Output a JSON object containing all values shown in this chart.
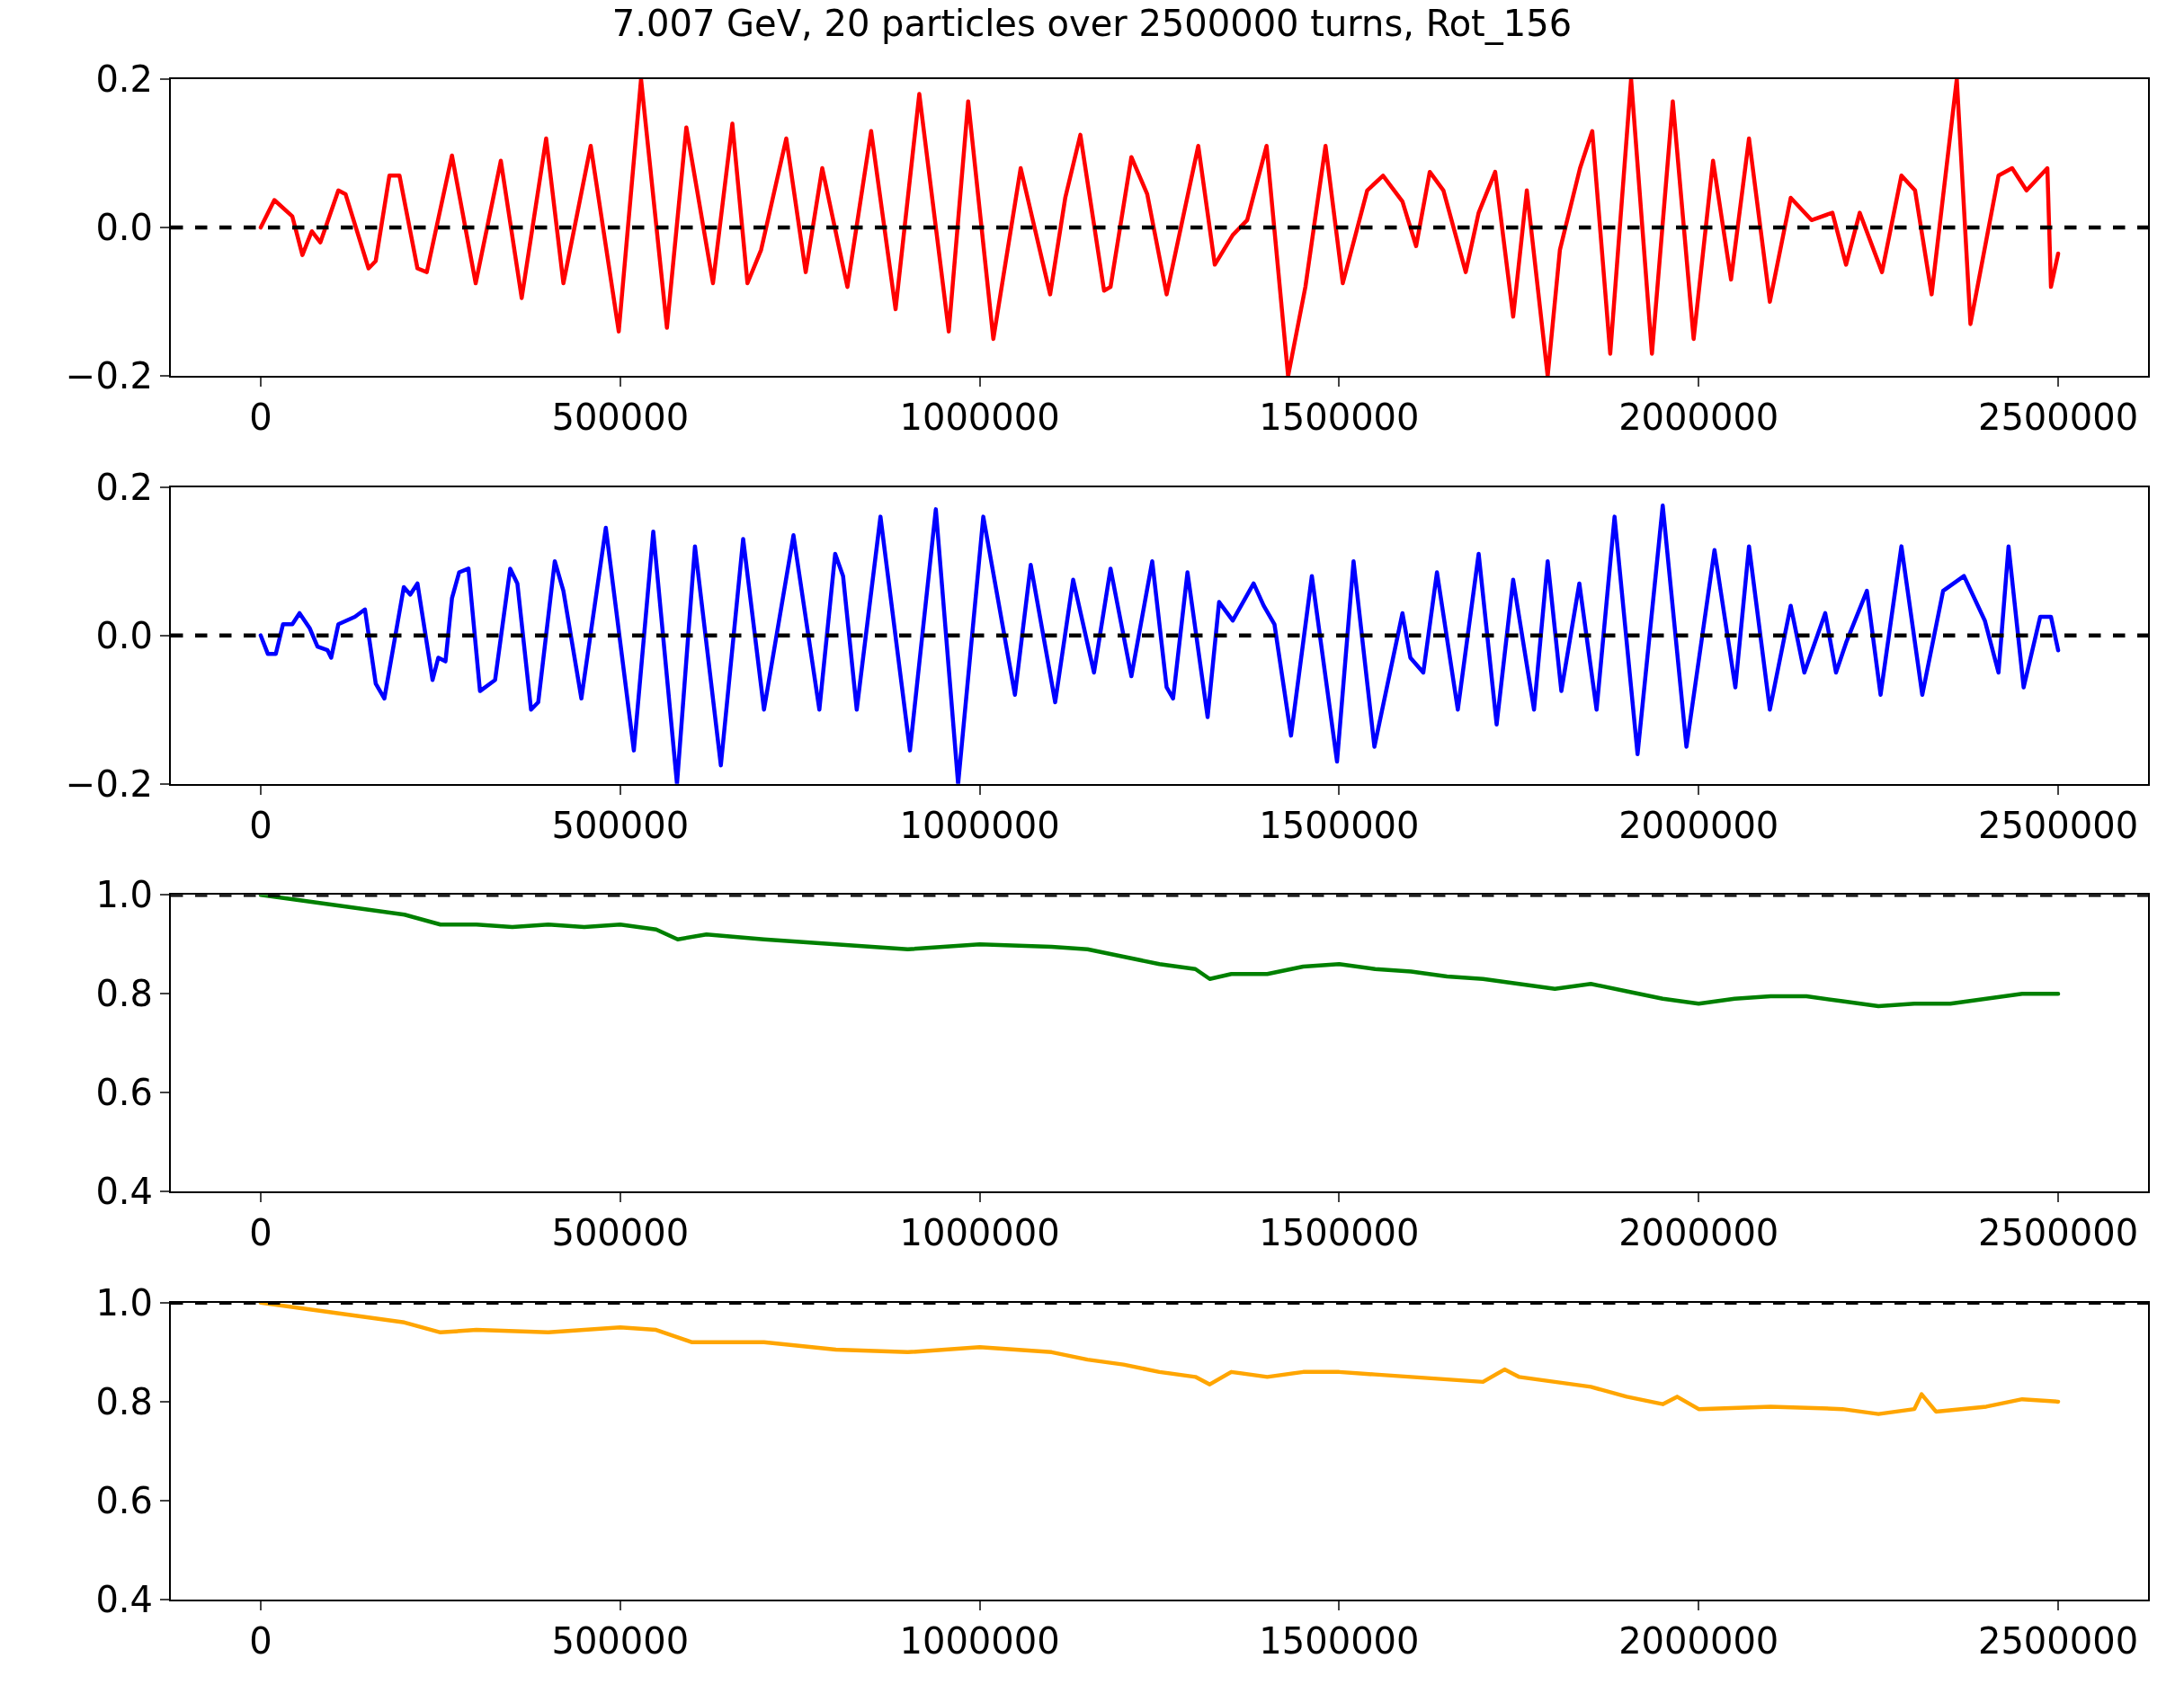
{
  "chart_data": [
    {
      "type": "line",
      "title": "7.007 GeV, 20 particles over 2500000 turns, Rot_156",
      "xlim": [
        -125000,
        2625000
      ],
      "xticks": [
        0,
        500000,
        1000000,
        1500000,
        2000000,
        2500000
      ],
      "ylim": [
        -0.2,
        0.2
      ],
      "yticks": [
        {
          "value": -0.2,
          "label": "−0.2"
        },
        {
          "value": 0,
          "label": "0.0"
        },
        0.2
      ],
      "line_style": "solid",
      "marker": "none",
      "ref_lines": [
        {
          "axis": "y",
          "value": 0,
          "color": "#000000",
          "line_style": "dashed"
        }
      ],
      "series": [
        {
          "color": "#ff0000",
          "x": [
            0,
            19000,
            44000,
            58000,
            71000,
            83000,
            108000,
            118000,
            150000,
            160000,
            179000,
            193000,
            218000,
            231000,
            266000,
            299000,
            334000,
            363000,
            397000,
            421000,
            459000,
            498000,
            529000,
            565000,
            592000,
            629000,
            656000,
            677000,
            696000,
            731000,
            758000,
            781000,
            816000,
            849000,
            883000,
            916000,
            957000,
            984000,
            1019000,
            1057000,
            1098000,
            1119000,
            1140000,
            1173000,
            1182000,
            1211000,
            1233000,
            1260000,
            1304000,
            1327000,
            1352000,
            1372000,
            1399000,
            1429000,
            1453000,
            1481000,
            1505000,
            1539000,
            1561000,
            1588000,
            1607000,
            1626000,
            1645000,
            1676000,
            1694000,
            1717000,
            1742000,
            1761000,
            1790000,
            1807000,
            1835000,
            1852000,
            1877000,
            1906000,
            1935000,
            1964000,
            1993000,
            2020000,
            2045000,
            2070000,
            2099000,
            2128000,
            2157000,
            2186000,
            2205000,
            2224000,
            2255000,
            2282000,
            2301000,
            2324000,
            2359000,
            2378000,
            2417000,
            2436000,
            2456000,
            2485000,
            2490000,
            2500000
          ],
          "values": [
            0,
            0.037,
            0.015,
            -0.037,
            -0.005,
            -0.02,
            0.05,
            0.045,
            -0.055,
            -0.045,
            0.07,
            0.07,
            -0.055,
            -0.06,
            0.097,
            -0.075,
            0.09,
            -0.095,
            0.12,
            -0.075,
            0.11,
            -0.14,
            0.2,
            -0.135,
            0.135,
            -0.075,
            0.14,
            -0.075,
            -0.03,
            0.12,
            -0.06,
            0.08,
            -0.08,
            0.13,
            -0.11,
            0.18,
            -0.14,
            0.17,
            -0.15,
            0.08,
            -0.09,
            0.04,
            0.125,
            -0.085,
            -0.08,
            0.095,
            0.045,
            -0.09,
            0.11,
            -0.05,
            -0.01,
            0.01,
            0.11,
            -0.2,
            -0.08,
            0.11,
            -0.075,
            0.05,
            0.07,
            0.035,
            -0.025,
            0.075,
            0.05,
            -0.06,
            0.02,
            0.075,
            -0.12,
            0.05,
            -0.2,
            -0.03,
            0.08,
            0.13,
            -0.17,
            0.2,
            -0.17,
            0.17,
            -0.15,
            0.09,
            -0.07,
            0.12,
            -0.1,
            0.04,
            0.01,
            0.02,
            -0.05,
            0.02,
            -0.06,
            0.07,
            0.05,
            -0.09,
            0.2,
            -0.13,
            0.07,
            0.08,
            0.05,
            0.08,
            -0.08,
            -0.035
          ]
        }
      ]
    },
    {
      "type": "line",
      "xlim": [
        -125000,
        2625000
      ],
      "xticks": [
        0,
        500000,
        1000000,
        1500000,
        2000000,
        2500000
      ],
      "ylim": [
        -0.2,
        0.2
      ],
      "yticks": [
        {
          "value": -0.2,
          "label": "−0.2"
        },
        {
          "value": 0,
          "label": "0.0"
        },
        0.2
      ],
      "line_style": "solid",
      "marker": "none",
      "ref_lines": [
        {
          "axis": "y",
          "value": 0,
          "color": "#000000",
          "line_style": "dashed"
        }
      ],
      "series": [
        {
          "color": "#0000ff",
          "x": [
            0,
            10000,
            21000,
            31000,
            44000,
            54000,
            68000,
            79000,
            93000,
            98000,
            108000,
            131000,
            145000,
            160000,
            172000,
            199000,
            208000,
            218000,
            239000,
            247000,
            257000,
            266000,
            276000,
            289000,
            305000,
            326000,
            347000,
            357000,
            376000,
            386000,
            409000,
            421000,
            446000,
            480000,
            519000,
            546000,
            579000,
            604000,
            640000,
            671000,
            700000,
            741000,
            777000,
            799000,
            810000,
            829000,
            862000,
            903000,
            939000,
            970000,
            1005000,
            1049000,
            1071000,
            1105000,
            1130000,
            1159000,
            1182000,
            1211000,
            1240000,
            1260000,
            1269000,
            1289000,
            1317000,
            1333000,
            1352000,
            1381000,
            1395000,
            1410000,
            1433000,
            1462000,
            1497000,
            1520000,
            1549000,
            1588000,
            1599000,
            1617000,
            1636000,
            1665000,
            1694000,
            1719000,
            1742000,
            1771000,
            1790000,
            1809000,
            1834000,
            1858000,
            1883000,
            1915000,
            1950000,
            1983000,
            2022000,
            2051000,
            2070000,
            2099000,
            2128000,
            2147000,
            2176000,
            2191000,
            2205000,
            2234000,
            2253000,
            2282000,
            2311000,
            2340000,
            2369000,
            2398000,
            2417000,
            2431000,
            2452000,
            2475000,
            2490000,
            2500000
          ],
          "values": [
            0,
            -0.025,
            -0.025,
            0.015,
            0.015,
            0.03,
            0.01,
            -0.015,
            -0.02,
            -0.03,
            0.015,
            0.025,
            0.035,
            -0.065,
            -0.085,
            0.065,
            0.055,
            0.07,
            -0.06,
            -0.03,
            -0.035,
            0.05,
            0.085,
            0.09,
            -0.075,
            -0.06,
            0.09,
            0.07,
            -0.1,
            -0.09,
            0.1,
            0.06,
            -0.085,
            0.145,
            -0.155,
            0.14,
            -0.2,
            0.12,
            -0.175,
            0.13,
            -0.1,
            0.135,
            -0.1,
            0.11,
            0.08,
            -0.1,
            0.16,
            -0.155,
            0.17,
            -0.2,
            0.16,
            -0.08,
            0.095,
            -0.09,
            0.075,
            -0.05,
            0.09,
            -0.055,
            0.1,
            -0.07,
            -0.085,
            0.085,
            -0.11,
            0.045,
            0.02,
            0.07,
            0.04,
            0.015,
            -0.135,
            0.08,
            -0.17,
            0.1,
            -0.15,
            0.03,
            -0.03,
            -0.05,
            0.085,
            -0.1,
            0.11,
            -0.12,
            0.075,
            -0.1,
            0.1,
            -0.075,
            0.07,
            -0.1,
            0.16,
            -0.16,
            0.175,
            -0.15,
            0.115,
            -0.07,
            0.12,
            -0.1,
            0.04,
            -0.05,
            0.03,
            -0.05,
            -0.01,
            0.06,
            -0.08,
            0.12,
            -0.08,
            0.06,
            0.08,
            0.02,
            -0.05,
            0.12,
            -0.07,
            0.025,
            0.025,
            -0.02
          ]
        }
      ]
    },
    {
      "type": "line",
      "xlim": [
        -125000,
        2625000
      ],
      "xticks": [
        0,
        500000,
        1000000,
        1500000,
        2000000,
        2500000
      ],
      "ylim": [
        0.4,
        1.0
      ],
      "yticks": [
        0.4,
        0.6,
        0.8,
        {
          "value": 1.0,
          "label": "1.0"
        }
      ],
      "line_style": "solid",
      "marker": "none",
      "ref_lines": [
        {
          "axis": "y",
          "value": 1.0,
          "color": "#000000",
          "line_style": "dashed"
        }
      ],
      "series": [
        {
          "color": "#008000",
          "x": [
            0,
            100000,
            150000,
            200000,
            250000,
            300000,
            350000,
            400000,
            450000,
            500000,
            550000,
            580000,
            620000,
            700000,
            800000,
            850000,
            900000,
            1000000,
            1100000,
            1150000,
            1200000,
            1250000,
            1300000,
            1320000,
            1350000,
            1400000,
            1450000,
            1500000,
            1550000,
            1600000,
            1650000,
            1700000,
            1750000,
            1800000,
            1850000,
            1900000,
            1950000,
            2000000,
            2050000,
            2100000,
            2150000,
            2200000,
            2250000,
            2300000,
            2350000,
            2400000,
            2450000,
            2500000
          ],
          "values": [
            1.0,
            0.98,
            0.97,
            0.96,
            0.94,
            0.94,
            0.935,
            0.94,
            0.935,
            0.94,
            0.93,
            0.91,
            0.92,
            0.91,
            0.9,
            0.895,
            0.89,
            0.9,
            0.895,
            0.89,
            0.875,
            0.86,
            0.85,
            0.83,
            0.84,
            0.84,
            0.855,
            0.86,
            0.85,
            0.845,
            0.835,
            0.83,
            0.82,
            0.81,
            0.82,
            0.805,
            0.79,
            0.78,
            0.79,
            0.795,
            0.795,
            0.785,
            0.775,
            0.78,
            0.78,
            0.79,
            0.8,
            0.8
          ]
        }
      ]
    },
    {
      "type": "line",
      "xlim": [
        -125000,
        2625000
      ],
      "xticks": [
        0,
        500000,
        1000000,
        1500000,
        2000000,
        2500000
      ],
      "ylim": [
        0.4,
        1.0
      ],
      "yticks": [
        0.4,
        0.6,
        0.8,
        {
          "value": 1.0,
          "label": "1.0"
        }
      ],
      "line_style": "solid",
      "marker": "none",
      "ref_lines": [
        {
          "axis": "y",
          "value": 1.0,
          "color": "#000000",
          "line_style": "dashed"
        }
      ],
      "series": [
        {
          "color": "#ffa500",
          "x": [
            0,
            100000,
            200000,
            250000,
            300000,
            400000,
            500000,
            550000,
            600000,
            700000,
            800000,
            900000,
            1000000,
            1100000,
            1150000,
            1200000,
            1250000,
            1300000,
            1320000,
            1350000,
            1400000,
            1450000,
            1500000,
            1550000,
            1600000,
            1650000,
            1700000,
            1730000,
            1750000,
            1800000,
            1850000,
            1900000,
            1950000,
            1970000,
            2000000,
            2100000,
            2200000,
            2250000,
            2300000,
            2310000,
            2330000,
            2400000,
            2450000,
            2500000
          ],
          "values": [
            1.0,
            0.98,
            0.96,
            0.94,
            0.945,
            0.94,
            0.95,
            0.945,
            0.92,
            0.92,
            0.905,
            0.9,
            0.91,
            0.9,
            0.885,
            0.875,
            0.86,
            0.85,
            0.835,
            0.86,
            0.85,
            0.86,
            0.86,
            0.855,
            0.85,
            0.845,
            0.84,
            0.865,
            0.85,
            0.84,
            0.83,
            0.81,
            0.795,
            0.81,
            0.785,
            0.79,
            0.785,
            0.775,
            0.785,
            0.815,
            0.78,
            0.79,
            0.805,
            0.8
          ]
        }
      ]
    }
  ]
}
